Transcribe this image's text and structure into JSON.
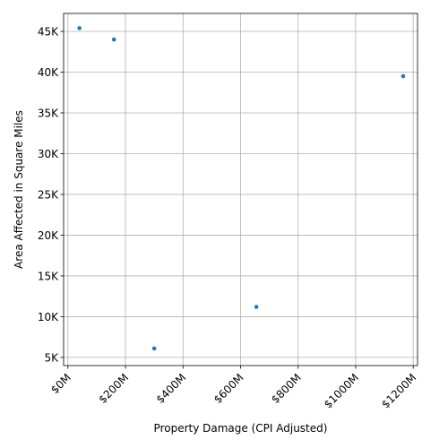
{
  "chart_data": {
    "type": "scatter",
    "title": "",
    "xlabel": "Property Damage (CPI Adjusted)",
    "ylabel": "Area Affected in Square Miles",
    "xlim": [
      -15,
      1215
    ],
    "ylim": [
      4000,
      47200
    ],
    "grid": true,
    "x_tick_values": [
      0,
      200,
      400,
      600,
      800,
      1000,
      1200
    ],
    "x_tick_labels": [
      "$0M",
      "$200M",
      "$400M",
      "$600M",
      "$800M",
      "$1000M",
      "$1200M"
    ],
    "y_tick_values": [
      5000,
      10000,
      15000,
      20000,
      25000,
      30000,
      35000,
      40000,
      45000
    ],
    "y_tick_labels": [
      "5K",
      "10K",
      "15K",
      "20K",
      "25K",
      "30K",
      "35K",
      "40K",
      "45K"
    ],
    "marker_color": "#1f77b4",
    "points": [
      {
        "x": 40,
        "y": 45400
      },
      {
        "x": 160,
        "y": 44000
      },
      {
        "x": 300,
        "y": 6100
      },
      {
        "x": 655,
        "y": 11200
      },
      {
        "x": 1165,
        "y": 39500
      }
    ]
  }
}
